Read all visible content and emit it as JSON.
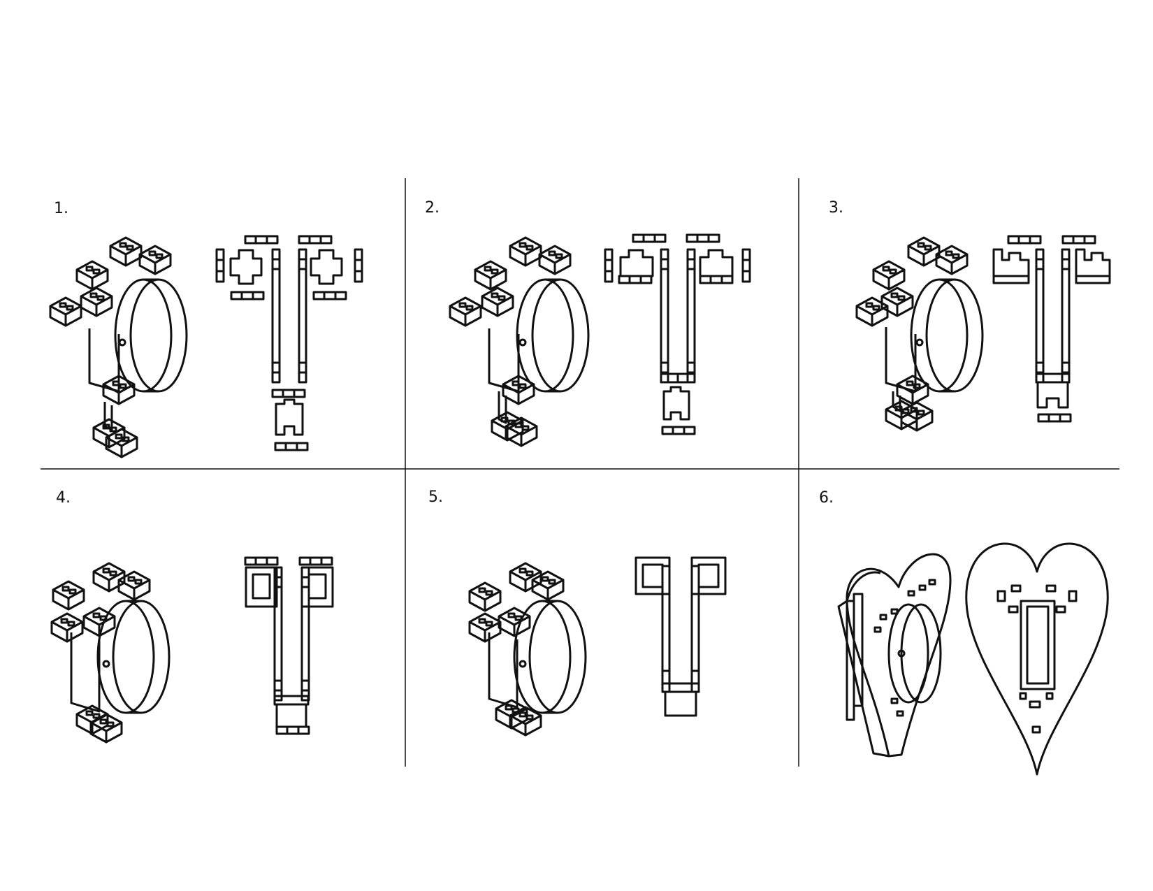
{
  "steps": [
    {
      "number": "1."
    },
    {
      "number": "2."
    },
    {
      "number": "3."
    },
    {
      "number": "4."
    },
    {
      "number": "5."
    },
    {
      "number": "6."
    }
  ],
  "colors": {
    "line": "#111111",
    "background": "#ffffff"
  }
}
